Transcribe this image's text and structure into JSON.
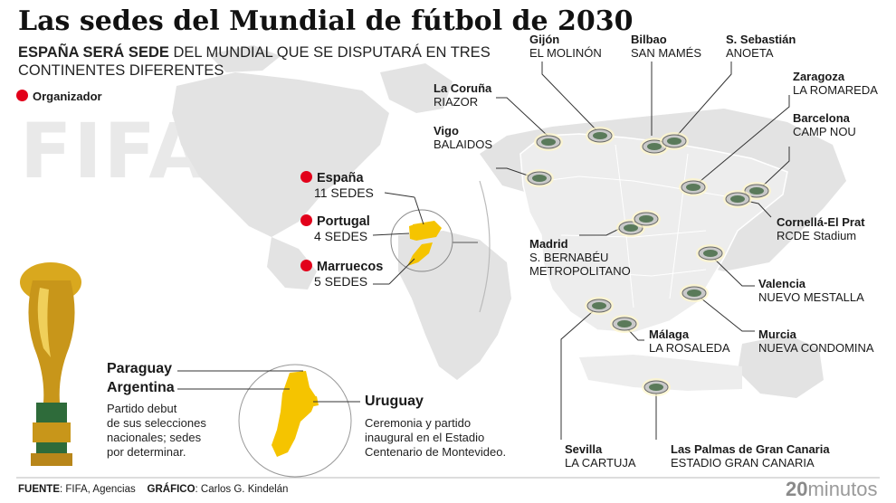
{
  "title": "Las sedes del Mundial de fútbol de 2030",
  "subtitle_bold": "ESPAÑA SERÁ SEDE",
  "subtitle_rest": " DEL MUNDIAL QUE SE DISPUTARÁ EN TRES CONTINENTES DIFERENTES",
  "legend": {
    "label": "Organizador",
    "color": "#e2001a"
  },
  "watermark": "FIFA",
  "hosts": [
    {
      "name": "España",
      "sedes": "11 SEDES"
    },
    {
      "name": "Portugal",
      "sedes": "4 SEDES"
    },
    {
      "name": "Marruecos",
      "sedes": "5 SEDES"
    }
  ],
  "south_america": {
    "paraguay": "Paraguay",
    "argentina": "Argentina",
    "argentina_note": [
      "Partido debut",
      "de sus selecciones",
      "nacionales; sedes",
      "por determinar."
    ],
    "uruguay": "Uruguay",
    "uruguay_note": [
      "Ceremonia y partido",
      "inaugural en el Estadio",
      "Centenario de Montevideo."
    ]
  },
  "venues": [
    {
      "city": "Gijón",
      "stadium": "EL MOLINÓN"
    },
    {
      "city": "Bilbao",
      "stadium": "SAN MAMÉS"
    },
    {
      "city": "S. Sebastián",
      "stadium": "ANOETA"
    },
    {
      "city": "Zaragoza",
      "stadium": "LA ROMAREDA"
    },
    {
      "city": "La Coruña",
      "stadium": "RIAZOR"
    },
    {
      "city": "Vigo",
      "stadium": "BALAIDOS"
    },
    {
      "city": "Barcelona",
      "stadium": "CAMP NOU"
    },
    {
      "city": "Cornellá-El Prat",
      "stadium": "RCDE Stadium"
    },
    {
      "city": "Madrid",
      "stadium": "S. BERNABÉU",
      "stadium2": "METROPOLITANO"
    },
    {
      "city": "Valencia",
      "stadium": "NUEVO MESTALLA"
    },
    {
      "city": "Murcia",
      "stadium": "NUEVA CONDOMINA"
    },
    {
      "city": "Málaga",
      "stadium": "LA ROSALEDA"
    },
    {
      "city": "Sevilla",
      "stadium": "LA CARTUJA"
    },
    {
      "city": "Las Palmas de Gran Canaria",
      "stadium": "ESTADIO GRAN CANARIA"
    }
  ],
  "footer": {
    "source_label": "FUENTE",
    "source": ": FIFA, Agencias",
    "graphic_label": "GRÁFICO",
    "graphic": ": Carlos G. Kindelán"
  },
  "logo": {
    "num": "20",
    "word": "minutos"
  },
  "colors": {
    "highlight": "#f5c400",
    "land": "#e3e3e3",
    "spain": "#ededed",
    "stadium": "#5a7a5a"
  }
}
